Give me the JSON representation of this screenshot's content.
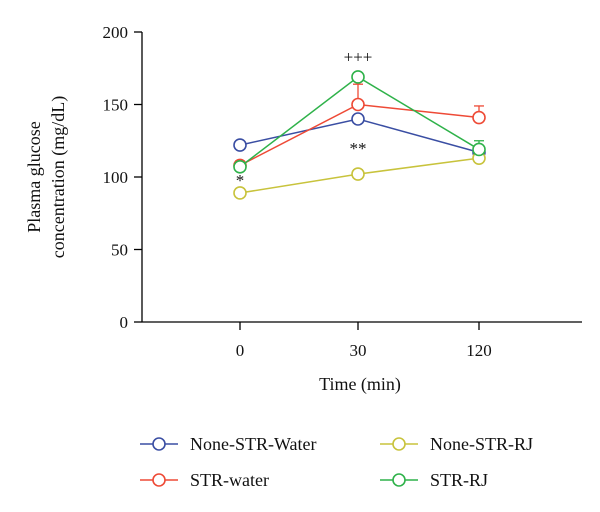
{
  "chart_data": {
    "type": "line",
    "xlabel": "Time (min)",
    "ylabel_lines": [
      "Plasma glucose",
      "concentration (mg/dL)"
    ],
    "categories": [
      "0",
      "30",
      "120"
    ],
    "yticks": [
      0,
      50,
      100,
      150,
      200
    ],
    "ylim": [
      0,
      200
    ],
    "legend_placement": "bottom",
    "grid": false,
    "series": [
      {
        "name": "None-STR-Water",
        "color": "#3a4ea3",
        "values": [
          122,
          140,
          117
        ],
        "err": [
          0,
          0,
          0
        ]
      },
      {
        "name": "STR-water",
        "color": "#ee4a36",
        "values": [
          108,
          150,
          141
        ],
        "err": [
          3,
          14,
          8
        ]
      },
      {
        "name": "None-STR-RJ",
        "color": "#c8c33c",
        "values": [
          89,
          102,
          113
        ],
        "err": [
          3,
          3,
          3
        ]
      },
      {
        "name": "STR-RJ",
        "color": "#2fb24a",
        "values": [
          107,
          169,
          119
        ],
        "err": [
          2,
          2,
          6
        ]
      }
    ],
    "annotations": [
      {
        "text": "+++",
        "category": "30",
        "y": 183
      },
      {
        "text": "**",
        "category": "30",
        "y": 120
      },
      {
        "text": "*",
        "category": "0",
        "y": 98
      }
    ]
  }
}
